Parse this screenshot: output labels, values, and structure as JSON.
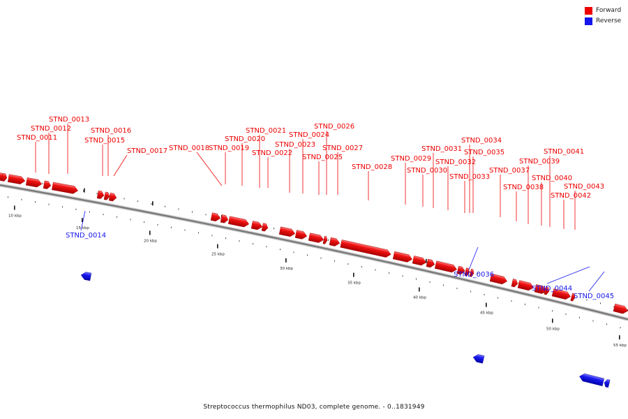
{
  "colors": {
    "forward": "#ee0000",
    "reverse": "#1515ee",
    "backbone": "#7a7a7a"
  },
  "legend": [
    {
      "label": "Forward",
      "strand": "forward",
      "color": "#ee0000"
    },
    {
      "label": "Reverse",
      "strand": "reverse",
      "color": "#1515ee"
    }
  ],
  "caption": "Streptococcus thermophilus ND03, complete genome. - 0..1831949",
  "scale": [
    {
      "label": "10 kbp"
    },
    {
      "label": "15 kbp"
    },
    {
      "label": "20 kbp"
    },
    {
      "label": "25 kbp"
    },
    {
      "label": "30 kbp"
    },
    {
      "label": "35 kbp"
    },
    {
      "label": "40 kbp"
    },
    {
      "label": "45 kbp"
    },
    {
      "label": "50 kbp"
    },
    {
      "label": "55 kbp"
    }
  ],
  "features": [
    {
      "name": "STND_0011",
      "strand": "forward"
    },
    {
      "name": "STND_0012",
      "strand": "forward"
    },
    {
      "name": "STND_0013",
      "strand": "forward"
    },
    {
      "name": "STND_0014",
      "strand": "reverse"
    },
    {
      "name": "STND_0015",
      "strand": "forward"
    },
    {
      "name": "STND_0016",
      "strand": "forward"
    },
    {
      "name": "STND_0017",
      "strand": "forward"
    },
    {
      "name": "STND_0018",
      "strand": "forward"
    },
    {
      "name": "STND_0019",
      "strand": "forward"
    },
    {
      "name": "STND_0020",
      "strand": "forward"
    },
    {
      "name": "STND_0021",
      "strand": "forward"
    },
    {
      "name": "STND_0022",
      "strand": "forward"
    },
    {
      "name": "STND_0023",
      "strand": "forward"
    },
    {
      "name": "STND_0024",
      "strand": "forward"
    },
    {
      "name": "STND_0025",
      "strand": "forward"
    },
    {
      "name": "STND_0026",
      "strand": "forward"
    },
    {
      "name": "STND_0027",
      "strand": "forward"
    },
    {
      "name": "STND_0028",
      "strand": "forward"
    },
    {
      "name": "STND_0029",
      "strand": "forward"
    },
    {
      "name": "STND_0030",
      "strand": "forward"
    },
    {
      "name": "STND_0031",
      "strand": "forward"
    },
    {
      "name": "STND_0032",
      "strand": "forward"
    },
    {
      "name": "STND_0033",
      "strand": "forward"
    },
    {
      "name": "STND_0034",
      "strand": "forward"
    },
    {
      "name": "STND_0035",
      "strand": "forward"
    },
    {
      "name": "STND_0036",
      "strand": "reverse"
    },
    {
      "name": "STND_0037",
      "strand": "forward"
    },
    {
      "name": "STND_0038",
      "strand": "forward"
    },
    {
      "name": "STND_0039",
      "strand": "forward"
    },
    {
      "name": "STND_0040",
      "strand": "forward"
    },
    {
      "name": "STND_0041",
      "strand": "forward"
    },
    {
      "name": "STND_0042",
      "strand": "forward"
    },
    {
      "name": "STND_0043",
      "strand": "forward"
    },
    {
      "name": "STND_0044",
      "strand": "reverse"
    },
    {
      "name": "STND_0045",
      "strand": "reverse"
    }
  ]
}
